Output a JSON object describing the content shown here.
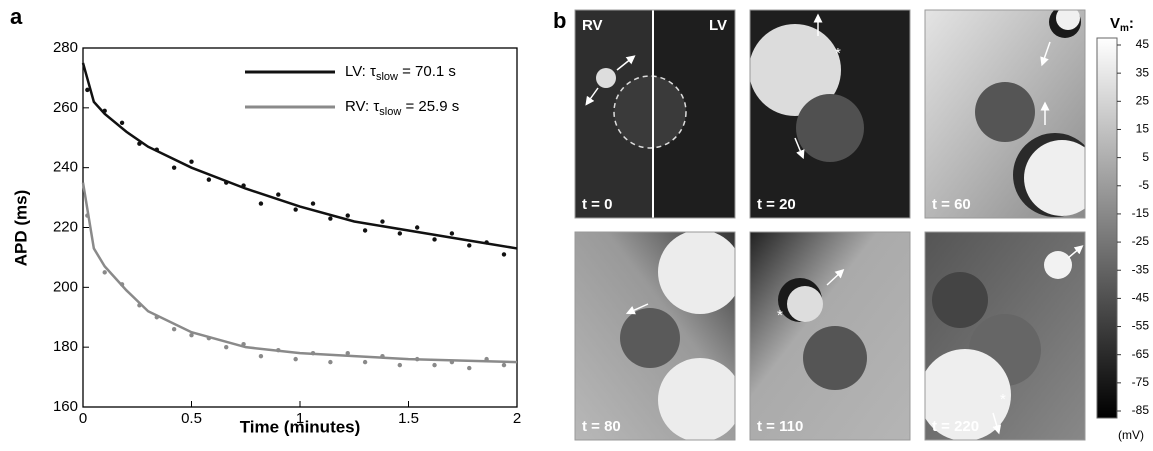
{
  "chart_data": {
    "type": "scatter",
    "label": "a",
    "xlabel": "Time (minutes)",
    "ylabel": "APD (ms)",
    "xlim": [
      0,
      2
    ],
    "ylim": [
      160,
      280
    ],
    "xticks": [
      0,
      0.5,
      1,
      1.5,
      2
    ],
    "yticks": [
      160,
      180,
      200,
      220,
      240,
      260,
      280
    ],
    "x": [
      0.02,
      0.1,
      0.18,
      0.26,
      0.34,
      0.42,
      0.5,
      0.58,
      0.66,
      0.74,
      0.82,
      0.9,
      0.98,
      1.06,
      1.14,
      1.22,
      1.3,
      1.38,
      1.46,
      1.54,
      1.62,
      1.7,
      1.78,
      1.86,
      1.94
    ],
    "fit_x": [
      0,
      0.05,
      0.1,
      0.2,
      0.3,
      0.5,
      0.75,
      1,
      1.25,
      1.5,
      1.75,
      2
    ],
    "series": [
      {
        "name": [
          "LV: τ",
          "slow",
          " = 70.1 s"
        ],
        "color": "#111111",
        "values": [
          266,
          259,
          255,
          248,
          246,
          240,
          242,
          236,
          235,
          234,
          228,
          231,
          226,
          228,
          223,
          224,
          219,
          222,
          218,
          220,
          216,
          218,
          214,
          215,
          211
        ],
        "fit_values": [
          275,
          262,
          258,
          252,
          247,
          240,
          233,
          227,
          222,
          219,
          216,
          213
        ]
      },
      {
        "name": [
          "RV: τ",
          "slow",
          " = 25.9 s"
        ],
        "color": "#8a8a8a",
        "values": [
          224,
          205,
          201,
          194,
          190,
          186,
          184,
          183,
          180,
          181,
          177,
          179,
          176,
          178,
          175,
          178,
          175,
          177,
          174,
          176,
          174,
          175,
          173,
          176,
          174
        ],
        "fit_values": [
          235,
          213,
          207,
          199,
          192,
          185,
          180,
          178,
          177,
          176,
          175.5,
          175
        ]
      }
    ]
  },
  "image_panel": {
    "label": "b",
    "regions": [
      "RV",
      "LV"
    ],
    "frames": [
      "t = 0",
      "t = 20",
      "t = 60",
      "t = 80",
      "t = 110",
      "t = 220"
    ],
    "colorbar": {
      "title": [
        "V",
        "m",
        ":"
      ],
      "ticks": [
        45,
        35,
        25,
        15,
        5,
        -5,
        -15,
        -25,
        -35,
        -45,
        -55,
        -65,
        -75,
        -85
      ],
      "unit": "(mV)"
    }
  }
}
